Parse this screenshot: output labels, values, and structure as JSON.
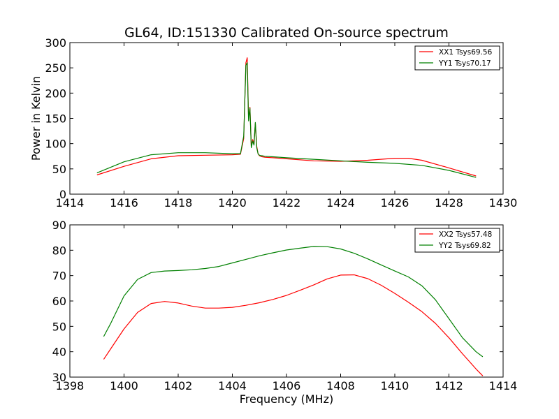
{
  "chart_data": [
    {
      "type": "line",
      "title": "GL64, ID:151330 Calibrated On-source spectrum",
      "xlabel": "",
      "ylabel": "Power in Kelvin",
      "xlim": [
        1414,
        1430
      ],
      "ylim": [
        0,
        300
      ],
      "xticks": [
        1414,
        1416,
        1418,
        1420,
        1422,
        1424,
        1426,
        1428,
        1430
      ],
      "yticks": [
        0,
        50,
        100,
        150,
        200,
        250,
        300
      ],
      "grid": false,
      "legend_position": "top-right",
      "series": [
        {
          "name": "XX1 Tsys69.56",
          "color": "#ff0000",
          "x": [
            1415.0,
            1416.0,
            1417.0,
            1418.0,
            1419.0,
            1420.0,
            1420.3,
            1420.42,
            1420.5,
            1420.55,
            1420.6,
            1420.65,
            1420.7,
            1420.75,
            1420.8,
            1420.85,
            1420.9,
            1420.95,
            1421.0,
            1421.05,
            1421.1,
            1421.2,
            1421.5,
            1422.0,
            1423.0,
            1424.0,
            1425.0,
            1426.0,
            1426.5,
            1427.0,
            1428.0,
            1429.0
          ],
          "y": [
            38,
            55,
            70,
            76,
            77,
            78,
            79,
            110,
            260,
            270,
            150,
            172,
            95,
            108,
            100,
            140,
            95,
            80,
            76,
            75,
            74,
            73,
            72,
            70,
            66,
            65,
            67,
            71,
            71,
            67,
            52,
            36
          ]
        },
        {
          "name": "YY1 Tsys70.17",
          "color": "#008000",
          "x": [
            1415.0,
            1416.0,
            1417.0,
            1418.0,
            1419.0,
            1420.0,
            1420.3,
            1420.42,
            1420.5,
            1420.55,
            1420.6,
            1420.65,
            1420.7,
            1420.75,
            1420.8,
            1420.85,
            1420.9,
            1420.95,
            1421.0,
            1421.05,
            1421.1,
            1421.2,
            1421.5,
            1422.0,
            1423.0,
            1424.0,
            1425.0,
            1426.0,
            1427.0,
            1428.0,
            1429.0
          ],
          "y": [
            42,
            64,
            78,
            82,
            82,
            80,
            80,
            115,
            255,
            260,
            145,
            170,
            92,
            105,
            97,
            142,
            92,
            80,
            77,
            76,
            76,
            75,
            74,
            72,
            69,
            66,
            63,
            61,
            57,
            47,
            33
          ]
        }
      ]
    },
    {
      "type": "line",
      "title": "",
      "xlabel": "Frequency (MHz)",
      "ylabel": "",
      "xlim": [
        1398,
        1414
      ],
      "ylim": [
        30,
        90
      ],
      "xticks": [
        1398,
        1400,
        1402,
        1404,
        1406,
        1408,
        1410,
        1412,
        1414
      ],
      "yticks": [
        30,
        40,
        50,
        60,
        70,
        80,
        90
      ],
      "grid": false,
      "legend_position": "top-right",
      "series": [
        {
          "name": "XX2 Tsys57.48",
          "color": "#ff0000",
          "x": [
            1399.25,
            1399.5,
            1400.0,
            1400.5,
            1401.0,
            1401.5,
            1402.0,
            1402.5,
            1403.0,
            1403.5,
            1404.0,
            1404.5,
            1405.0,
            1405.5,
            1406.0,
            1406.5,
            1407.0,
            1407.5,
            1408.0,
            1408.5,
            1409.0,
            1409.5,
            1410.0,
            1410.5,
            1411.0,
            1411.5,
            1412.0,
            1412.5,
            1413.0,
            1413.25
          ],
          "y": [
            37,
            41,
            49,
            55.5,
            59,
            59.8,
            59.2,
            58,
            57.2,
            57.2,
            57.5,
            58.3,
            59.3,
            60.6,
            62.2,
            64.2,
            66.3,
            68.7,
            70.2,
            70.3,
            68.8,
            66.2,
            63.0,
            59.5,
            55.8,
            51.2,
            45.5,
            39.2,
            33.2,
            30.5
          ]
        },
        {
          "name": "YY2 Tsys69.82",
          "color": "#008000",
          "x": [
            1399.25,
            1399.5,
            1400.0,
            1400.5,
            1401.0,
            1401.5,
            1402.0,
            1402.5,
            1403.0,
            1403.5,
            1404.0,
            1404.5,
            1405.0,
            1405.5,
            1406.0,
            1406.5,
            1407.0,
            1407.5,
            1408.0,
            1408.5,
            1409.0,
            1409.5,
            1410.0,
            1410.5,
            1411.0,
            1411.5,
            1412.0,
            1412.5,
            1413.0,
            1413.25
          ],
          "y": [
            46,
            51,
            62,
            68.5,
            71.2,
            71.8,
            72.0,
            72.3,
            72.8,
            73.6,
            75.0,
            76.4,
            77.8,
            79.0,
            80.1,
            80.8,
            81.5,
            81.4,
            80.5,
            78.8,
            76.6,
            74.2,
            71.8,
            69.5,
            66.0,
            60.5,
            53.0,
            45.5,
            40.0,
            38.0
          ]
        }
      ]
    }
  ]
}
